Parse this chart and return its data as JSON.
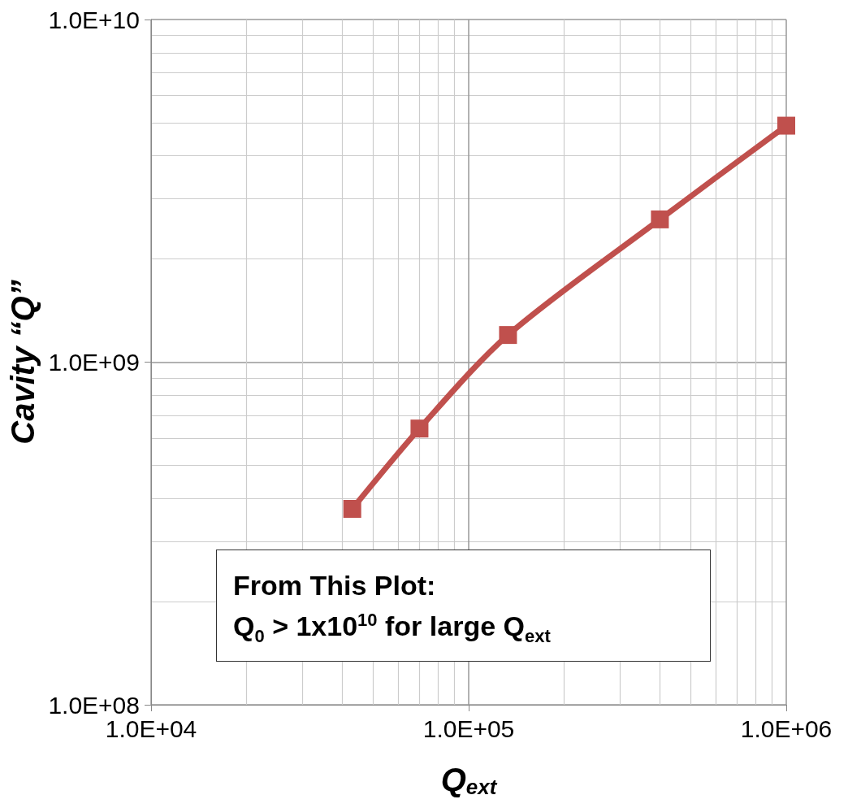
{
  "chart_data": {
    "type": "line",
    "xlabel": "Q$_{ext}$",
    "ylabel": "Cavity “Q”",
    "x": [
      43000,
      70000,
      133000,
      400000,
      1000000
    ],
    "series": [
      {
        "color": "#c0504d",
        "values": [
          373000000,
          640000000,
          1200000000,
          2610000000,
          4900000000
        ]
      }
    ],
    "log": "xy",
    "xlim": [
      10000,
      1000000
    ],
    "ylim": [
      100000000,
      10000000000
    ],
    "xticks": [
      {
        "value": 10000,
        "label": "1.0E+04"
      },
      {
        "value": 100000,
        "label": "1.0E+05"
      },
      {
        "value": 1000000,
        "label": "1.0E+06"
      }
    ],
    "yticks": [
      {
        "value": 100000000,
        "label": "1.0E+08"
      },
      {
        "value": 1000000000,
        "label": "1.0E+09"
      },
      {
        "value": 10000000000,
        "label": "1.0E+10"
      }
    ],
    "grid": true,
    "marker": "square",
    "line_style": "solid",
    "annotations": [
      "From This Plot:",
      "Q$_{0}$ > 1x10$^{10}$ for large Q$_{ext}$"
    ]
  }
}
